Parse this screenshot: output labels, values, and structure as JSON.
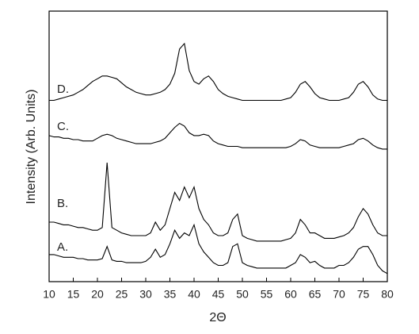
{
  "chart_data": {
    "type": "line",
    "xlabel": "2Θ",
    "ylabel": "Intensity (Arb. Units)",
    "xlim": [
      10,
      80
    ],
    "xticks": [
      10,
      15,
      20,
      25,
      30,
      35,
      40,
      45,
      50,
      55,
      60,
      65,
      70,
      75,
      80
    ],
    "ylim": [
      0,
      100
    ],
    "x": [
      10,
      11,
      12,
      13,
      14,
      15,
      16,
      17,
      18,
      19,
      20,
      21,
      22,
      23,
      24,
      25,
      26,
      27,
      28,
      29,
      30,
      31,
      32,
      33,
      34,
      35,
      36,
      37,
      38,
      39,
      40,
      41,
      42,
      43,
      44,
      45,
      46,
      47,
      48,
      49,
      50,
      51,
      52,
      53,
      54,
      55,
      56,
      57,
      58,
      59,
      60,
      61,
      62,
      63,
      64,
      65,
      66,
      67,
      68,
      69,
      70,
      71,
      72,
      73,
      74,
      75,
      76,
      77,
      78,
      79,
      80
    ],
    "series": [
      {
        "name": "A.",
        "color": "#000000",
        "values": [
          10,
          10,
          9.5,
          9,
          9,
          9,
          8.5,
          8.5,
          8,
          8,
          8,
          8.5,
          13,
          8,
          7.5,
          7.5,
          7,
          7,
          7,
          7,
          7.5,
          9,
          12,
          9,
          10,
          14,
          19,
          16,
          18,
          17,
          21,
          14,
          11,
          9,
          7,
          6,
          6,
          7,
          13,
          14,
          7,
          6,
          5.5,
          5,
          5,
          5,
          5,
          5,
          5,
          5,
          6,
          7,
          10,
          9,
          7,
          7.5,
          6,
          5,
          5,
          5,
          6,
          6,
          7,
          9,
          12,
          13,
          13,
          10,
          6,
          4,
          3
        ]
      },
      {
        "name": "B.",
        "color": "#000000",
        "values": [
          22,
          22,
          21.5,
          21,
          21,
          20.5,
          20,
          20,
          19.5,
          19,
          19,
          20,
          44,
          20,
          19,
          18,
          17.5,
          17,
          17,
          17,
          17,
          18,
          22,
          19,
          21,
          27,
          33,
          30,
          35,
          31,
          35,
          27,
          23,
          21,
          18,
          17,
          17,
          18,
          23,
          25,
          17,
          16,
          15.5,
          15,
          15,
          15,
          15,
          15,
          15,
          15.5,
          16,
          18,
          23,
          21,
          18,
          18,
          17,
          16,
          16,
          16,
          16.5,
          17,
          18,
          20,
          24,
          27,
          25,
          21,
          18,
          17,
          17
        ]
      },
      {
        "name": "C.",
        "color": "#000000",
        "values": [
          54,
          53.5,
          53.5,
          53,
          53,
          52.5,
          52.5,
          52,
          52,
          52,
          53,
          54,
          54.5,
          54,
          53,
          52.5,
          52,
          51.5,
          51,
          51,
          51,
          51,
          51.5,
          52,
          53,
          55,
          57,
          58.5,
          57.5,
          55,
          54,
          54,
          54.5,
          54,
          52,
          51,
          50.5,
          50,
          50,
          50,
          49.5,
          49.5,
          49.5,
          49.5,
          49.5,
          49.5,
          49.5,
          49.5,
          49.5,
          49.5,
          50,
          51,
          52.5,
          52,
          50.5,
          50,
          49.5,
          49.5,
          49.5,
          49.5,
          49.5,
          50,
          50.5,
          51,
          52.5,
          53,
          52,
          50.5,
          49.5,
          49,
          49
        ]
      },
      {
        "name": "D.",
        "color": "#000000",
        "values": [
          67,
          67,
          67.5,
          68,
          68.5,
          69,
          70,
          71,
          72.5,
          74,
          75,
          76,
          76,
          75.5,
          75,
          73.5,
          72,
          71,
          70,
          69.5,
          69,
          69,
          69.5,
          70,
          71,
          73,
          77,
          86,
          88,
          78,
          74,
          73,
          75,
          76,
          74,
          71,
          69.5,
          68.5,
          68,
          67.5,
          67,
          67,
          67,
          67,
          67,
          67,
          67,
          67,
          67,
          67.5,
          68,
          70,
          73,
          74,
          72,
          69.5,
          68,
          67.5,
          67,
          67,
          67,
          67.5,
          68,
          70,
          73,
          74,
          72,
          69,
          67.5,
          67,
          67
        ]
      }
    ]
  }
}
